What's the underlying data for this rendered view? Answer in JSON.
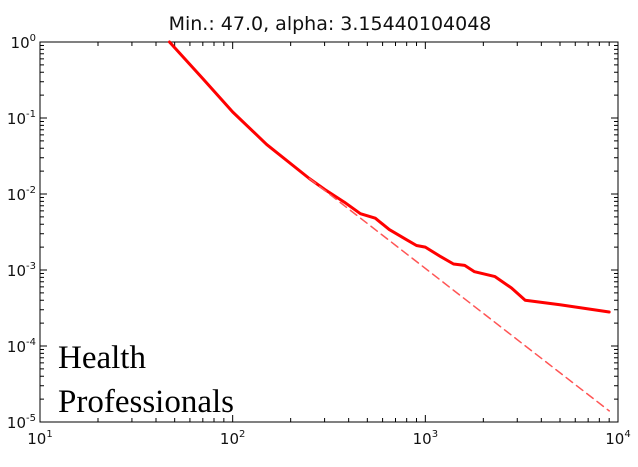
{
  "chart_data": {
    "type": "line",
    "title": "Min.: 47.0, alpha: 3.15440104048",
    "xlabel": "",
    "ylabel": "",
    "xscale": "log",
    "yscale": "log",
    "xlim": [
      10,
      10000
    ],
    "ylim": [
      1e-05,
      1
    ],
    "grid": false,
    "x_ticks": [
      {
        "value": 10,
        "base": "10",
        "exp": "1"
      },
      {
        "value": 100,
        "base": "10",
        "exp": "2"
      },
      {
        "value": 1000,
        "base": "10",
        "exp": "3"
      },
      {
        "value": 10000,
        "base": "10",
        "exp": "4"
      }
    ],
    "y_ticks": [
      {
        "value": 1,
        "base": "10",
        "exp": "0"
      },
      {
        "value": 0.1,
        "base": "10",
        "exp": "-1"
      },
      {
        "value": 0.01,
        "base": "10",
        "exp": "-2"
      },
      {
        "value": 0.001,
        "base": "10",
        "exp": "-3"
      },
      {
        "value": 0.0001,
        "base": "10",
        "exp": "-4"
      },
      {
        "value": 1e-05,
        "base": "10",
        "exp": "-5"
      }
    ],
    "series": [
      {
        "style": "solid",
        "color": "#ff0000",
        "points": [
          [
            47,
            1.0
          ],
          [
            70,
            0.33
          ],
          [
            100,
            0.12
          ],
          [
            150,
            0.045
          ],
          [
            250,
            0.016
          ],
          [
            300,
            0.0115
          ],
          [
            380,
            0.0078
          ],
          [
            460,
            0.0055
          ],
          [
            550,
            0.0048
          ],
          [
            650,
            0.0034
          ],
          [
            800,
            0.0025
          ],
          [
            900,
            0.0021
          ],
          [
            1000,
            0.002
          ],
          [
            1200,
            0.0015
          ],
          [
            1400,
            0.0012
          ],
          [
            1600,
            0.00115
          ],
          [
            1800,
            0.00095
          ],
          [
            2300,
            0.00082
          ],
          [
            2800,
            0.00058
          ],
          [
            3300,
            0.0004
          ],
          [
            5000,
            0.00035
          ],
          [
            9000,
            0.00028
          ]
        ]
      },
      {
        "style": "dashed",
        "color": "#ff5555",
        "points": [
          [
            250,
            0.016
          ],
          [
            9000,
            1.4e-05
          ]
        ]
      }
    ],
    "annotation": "Health\nProfessionals",
    "annotation_lines": [
      "Health",
      "Professionals"
    ]
  }
}
